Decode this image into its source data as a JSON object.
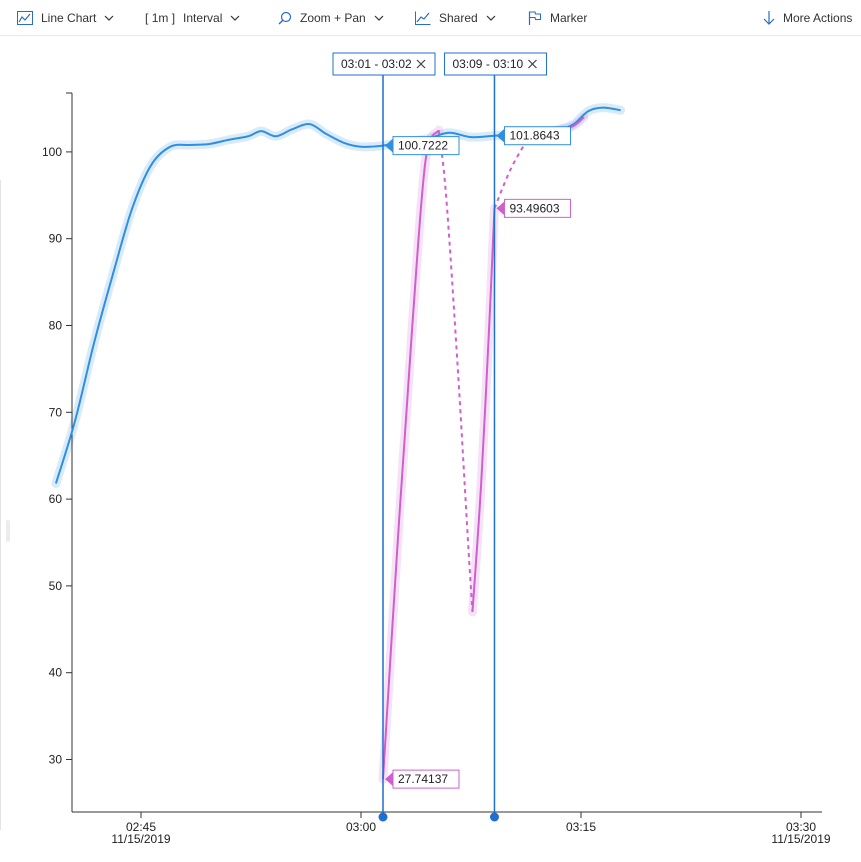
{
  "toolbar": {
    "chart_type_label": "Line Chart",
    "interval_value": "1m",
    "interval_label": "Interval",
    "zoom_label": "Zoom + Pan",
    "shared_label": "Shared",
    "marker_label": "Marker",
    "more_actions_label": "More Actions"
  },
  "colors": {
    "series_blue": "#2f8fe0",
    "series_magenta": "#cf5fcf",
    "marker_line": "#1f6fd0"
  },
  "chart_data": {
    "type": "line",
    "title": "",
    "xlabel": "",
    "ylabel": "",
    "ylim": [
      24,
      106
    ],
    "xlim_minutes": [
      "02:38",
      "03:32"
    ],
    "y_ticks": [
      30,
      40,
      50,
      60,
      70,
      80,
      90,
      100
    ],
    "x_ticks": [
      {
        "time": "02:45",
        "label": "02:45",
        "date": "11/15/2019"
      },
      {
        "time": "03:00",
        "label": "03:00",
        "date": ""
      },
      {
        "time": "03:15",
        "label": "03:15",
        "date": ""
      },
      {
        "time": "03:30",
        "label": "03:30",
        "date": "11/15/2019"
      }
    ],
    "grid": false,
    "series": [
      {
        "style": "solid-with-band",
        "color": "#2f8fe0",
        "points": [
          [
            "02:39.2",
            61.8
          ],
          [
            "02:40.5",
            69
          ],
          [
            "02:41.8",
            78
          ],
          [
            "02:43.1",
            86
          ],
          [
            "02:44.4",
            93.5
          ],
          [
            "02:45.7",
            98.5
          ],
          [
            "02:47.0",
            100.6
          ],
          [
            "02:48.3",
            100.8
          ],
          [
            "02:49.6",
            100.9
          ],
          [
            "02:51.0",
            101.4
          ],
          [
            "02:52.3",
            101.8
          ],
          [
            "02:53.2",
            102.4
          ],
          [
            "02:54.2",
            101.8
          ],
          [
            "02:55.3",
            102.6
          ],
          [
            "02:56.5",
            103.2
          ],
          [
            "02:57.6",
            102.1
          ],
          [
            "02:58.9",
            101.0
          ],
          [
            "03:00.0",
            100.6
          ],
          [
            "03:01.5",
            100.7222
          ],
          [
            "03:03.0",
            101.2
          ],
          [
            "03:04.5",
            101.5
          ],
          [
            "03:06.0",
            102.2
          ],
          [
            "03:07.5",
            101.7
          ],
          [
            "03:09.1",
            101.8643
          ],
          [
            "03:10.5",
            102.0
          ],
          [
            "03:12.0",
            102.2
          ],
          [
            "03:13.5",
            102.6
          ],
          [
            "03:14.5",
            103.2
          ],
          [
            "03:15.5",
            104.7
          ],
          [
            "03:16.5",
            105.1
          ],
          [
            "03:17.7",
            104.8
          ]
        ]
      },
      {
        "style": "solid-with-band",
        "color": "#cf5fcf",
        "points": [
          [
            "03:01.5",
            27.74137
          ],
          [
            "03:02.5",
            55
          ],
          [
            "03:03.5",
            80
          ],
          [
            "03:04.4",
            99
          ],
          [
            "03:05.3",
            102.5
          ]
        ]
      },
      {
        "style": "dashed",
        "color": "#cf5fcf",
        "points": [
          [
            "03:05.3",
            102.5
          ],
          [
            "03:05.8",
            95
          ],
          [
            "03:06.6",
            75
          ],
          [
            "03:07.3",
            55
          ],
          [
            "03:07.6",
            47
          ]
        ]
      },
      {
        "style": "solid-with-band",
        "color": "#cf5fcf",
        "points": [
          [
            "03:07.6",
            47
          ],
          [
            "03:08.2",
            62
          ],
          [
            "03:08.8",
            82
          ],
          [
            "03:09.1",
            93.49603
          ]
        ]
      },
      {
        "style": "dashed",
        "color": "#cf5fcf",
        "points": [
          [
            "03:09.1",
            93.49603
          ],
          [
            "03:10.2",
            98
          ],
          [
            "03:11.3",
            101.3
          ]
        ]
      },
      {
        "style": "solid-with-band",
        "color": "#cf5fcf",
        "points": [
          [
            "03:12.0",
            102.0
          ],
          [
            "03:13.5",
            102.5
          ],
          [
            "03:14.5",
            103.0
          ],
          [
            "03:15.2",
            104.0
          ]
        ]
      }
    ],
    "markers": [
      {
        "time": "03:01.5",
        "range_label": "03:01 - 03:02",
        "values": [
          {
            "value": 100.7222,
            "label": "100.7222",
            "color": "#2f8fe0"
          },
          {
            "value": 27.74137,
            "label": "27.74137",
            "color": "#cf5fcf"
          }
        ]
      },
      {
        "time": "03:09.1",
        "range_label": "03:09 - 03:10",
        "values": [
          {
            "value": 101.8643,
            "label": "101.8643",
            "color": "#2f8fe0"
          },
          {
            "value": 93.49603,
            "label": "93.49603",
            "color": "#cf5fcf"
          }
        ]
      }
    ]
  }
}
